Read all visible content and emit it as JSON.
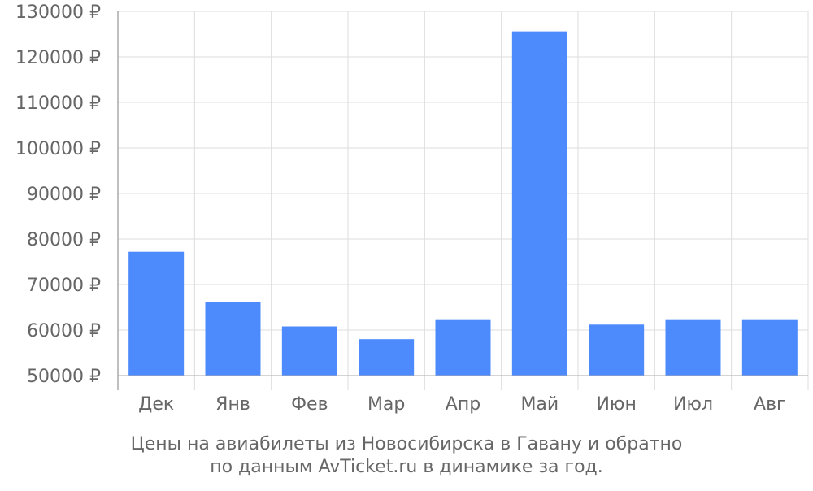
{
  "chart_data": {
    "type": "bar",
    "categories": [
      "Дек",
      "Янв",
      "Фев",
      "Мар",
      "Апр",
      "Май",
      "Июн",
      "Июл",
      "Авг"
    ],
    "values": [
      77200,
      66200,
      60800,
      58000,
      62200,
      125600,
      61200,
      62200,
      62200
    ],
    "ylim": [
      50000,
      130000
    ],
    "y_ticks": [
      50000,
      60000,
      70000,
      80000,
      90000,
      100000,
      110000,
      120000,
      130000
    ],
    "y_tick_labels": [
      "50000 ₽",
      "60000 ₽",
      "70000 ₽",
      "80000 ₽",
      "90000 ₽",
      "100000 ₽",
      "110000 ₽",
      "120000 ₽",
      "130000 ₽"
    ],
    "grid": true,
    "colors": {
      "bar": "#4d8afc",
      "grid": "#dddddd",
      "axis": "#aaaaaa",
      "text": "#666666"
    }
  },
  "caption": {
    "line1": "Цены на авиабилеты из Новосибирска в Гавану и обратно",
    "line2": "по данным AvTicket.ru в динамике за год."
  }
}
